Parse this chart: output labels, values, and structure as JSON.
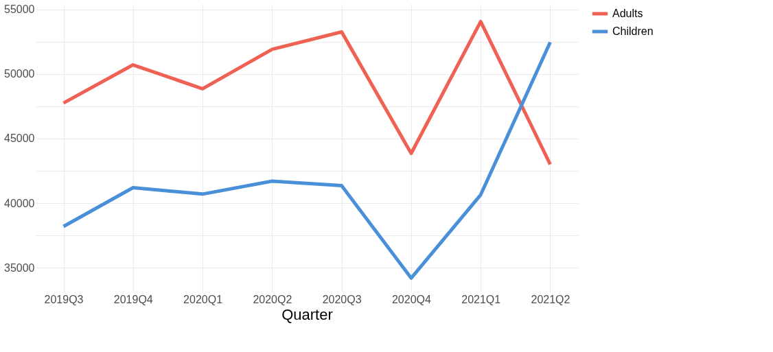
{
  "chart_data": {
    "type": "line",
    "xlabel": "Quarter",
    "categories": [
      "2019Q3",
      "2019Q4",
      "2020Q1",
      "2020Q2",
      "2020Q3",
      "2020Q4",
      "2021Q1",
      "2021Q2"
    ],
    "series": [
      {
        "name": "Adults",
        "color": "#ef6155",
        "values": [
          47750,
          50700,
          48850,
          51900,
          53250,
          43850,
          54050,
          43000
        ]
      },
      {
        "name": "Children",
        "color": "#4a90d9",
        "values": [
          38200,
          41200,
          40700,
          41700,
          41350,
          34200,
          40650,
          52450
        ]
      }
    ],
    "ylim": [
      33100,
      55400
    ],
    "yticks": [
      {
        "value": 35000,
        "label": "35000"
      },
      {
        "value": 37500,
        "label": null
      },
      {
        "value": 40000,
        "label": "40000"
      },
      {
        "value": 42500,
        "label": null
      },
      {
        "value": 45000,
        "label": "45000"
      },
      {
        "value": 47500,
        "label": null
      },
      {
        "value": 50000,
        "label": "50000"
      },
      {
        "value": 52500,
        "label": null
      },
      {
        "value": 55000,
        "label": "55000"
      }
    ],
    "grid": true,
    "legend": "right",
    "marker": "none",
    "line_style": "solid"
  }
}
